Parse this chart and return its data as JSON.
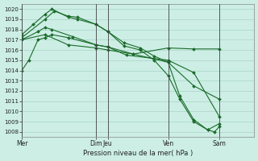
{
  "title": "Pression niveau de la mer( hPa )",
  "bg_color": "#cceee4",
  "grid_color": "#aad4c8",
  "line_color": "#1a6b2a",
  "ylim": [
    1007.5,
    1020.5
  ],
  "yticks": [
    1008,
    1009,
    1010,
    1011,
    1012,
    1013,
    1014,
    1015,
    1016,
    1017,
    1018,
    1019,
    1020
  ],
  "day_labels": [
    "Mer",
    "Dim",
    "Jeu",
    "Ven",
    "Sam"
  ],
  "day_positions": [
    0,
    32,
    37,
    63,
    85
  ],
  "xlim": [
    0,
    100
  ],
  "series": [
    {
      "x": [
        0,
        3,
        7,
        10,
        13,
        20,
        32,
        37,
        45,
        63,
        74,
        85
      ],
      "y": [
        1014.0,
        1015.0,
        1017.0,
        1017.2,
        1017.5,
        1017.2,
        1016.5,
        1016.3,
        1015.5,
        1015.0,
        1013.8,
        1009.5
      ]
    },
    {
      "x": [
        0,
        7,
        10,
        13,
        22,
        32,
        37,
        48,
        63,
        74,
        85
      ],
      "y": [
        1017.0,
        1017.8,
        1018.2,
        1018.0,
        1017.3,
        1016.5,
        1016.3,
        1015.6,
        1014.8,
        1012.5,
        1011.2
      ]
    },
    {
      "x": [
        0,
        10,
        20,
        32,
        37,
        48,
        63,
        74,
        85
      ],
      "y": [
        1017.0,
        1017.5,
        1016.5,
        1016.2,
        1016.0,
        1015.6,
        1016.2,
        1016.1,
        1016.1
      ]
    },
    {
      "x": [
        0,
        10,
        14,
        20,
        24,
        32,
        37,
        44,
        51,
        57,
        63,
        68,
        74,
        80,
        85
      ],
      "y": [
        1017.2,
        1019.0,
        1019.8,
        1019.3,
        1019.2,
        1018.5,
        1017.8,
        1016.7,
        1016.2,
        1015.4,
        1014.8,
        1011.5,
        1009.2,
        1008.2,
        1008.8
      ]
    },
    {
      "x": [
        0,
        5,
        10,
        13,
        20,
        24,
        32,
        37,
        44,
        51,
        57,
        63,
        68,
        74,
        80,
        83,
        85
      ],
      "y": [
        1017.5,
        1018.5,
        1019.5,
        1020.0,
        1019.2,
        1019.0,
        1018.5,
        1017.8,
        1016.4,
        1016.0,
        1015.0,
        1013.5,
        1011.2,
        1009.0,
        1008.2,
        1008.0,
        1008.5
      ]
    }
  ]
}
